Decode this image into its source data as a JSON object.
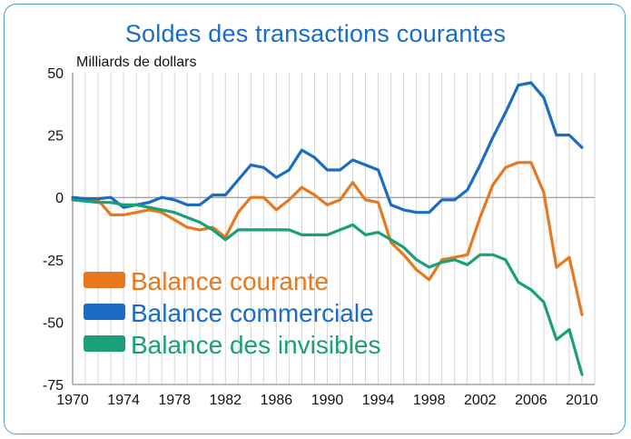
{
  "chart_data": {
    "type": "line",
    "title": "Soldes des transactions courantes",
    "ylabel": "Milliards de dollars",
    "xlabel": "",
    "xlim": [
      1970,
      2011
    ],
    "ylim": [
      -75,
      50
    ],
    "x_ticks": [
      1970,
      1974,
      1978,
      1982,
      1986,
      1990,
      1994,
      1998,
      2002,
      2006,
      2010
    ],
    "y_ticks": [
      50,
      25,
      0,
      -25,
      -50,
      -75
    ],
    "grid": "vertical",
    "legend": "bottom-left",
    "x": [
      1970,
      1971,
      1972,
      1973,
      1974,
      1975,
      1976,
      1977,
      1978,
      1979,
      1980,
      1981,
      1982,
      1983,
      1984,
      1985,
      1986,
      1987,
      1988,
      1989,
      1990,
      1991,
      1992,
      1993,
      1994,
      1995,
      1996,
      1997,
      1998,
      1999,
      2000,
      2001,
      2002,
      2003,
      2004,
      2005,
      2006,
      2007,
      2008,
      2009,
      2010
    ],
    "series": [
      {
        "name": "Balance courante",
        "color": "#e8781e",
        "values": [
          0,
          -1,
          -1,
          -7,
          -7,
          -6,
          -5,
          -6,
          -9,
          -12,
          -13,
          -12,
          -16,
          -6,
          0,
          0,
          -5,
          -1,
          4,
          1,
          -3,
          -1,
          6,
          -1,
          -2,
          -18,
          -23,
          -29,
          -33,
          -25,
          -24,
          -23,
          -8,
          5,
          12,
          14,
          14,
          2,
          -28,
          -24,
          -47
        ]
      },
      {
        "name": "Balance commerciale",
        "color": "#1a6cc4",
        "values": [
          0,
          -0.5,
          -0.5,
          0,
          -4,
          -3,
          -2,
          0,
          -1,
          -3,
          -3,
          1,
          1,
          7,
          13,
          12,
          8,
          11,
          19,
          16,
          11,
          11,
          15,
          13,
          11,
          -3,
          -5,
          -6,
          -6,
          -1,
          -1,
          3,
          13,
          24,
          34,
          45,
          46,
          40,
          25,
          25,
          20
        ]
      },
      {
        "name": "Balance des invisibles",
        "color": "#199f79",
        "values": [
          -1,
          -1.5,
          -2,
          -2,
          -3,
          -3,
          -4,
          -5,
          -6,
          -8,
          -10,
          -13,
          -17,
          -13,
          -13,
          -13,
          -13,
          -13,
          -15,
          -15,
          -15,
          -13,
          -11,
          -15,
          -14,
          -17,
          -20,
          -25,
          -28,
          -26,
          -25,
          -27,
          -23,
          -23,
          -25,
          -34,
          -37,
          -42,
          -57,
          -53,
          -71
        ]
      }
    ]
  }
}
